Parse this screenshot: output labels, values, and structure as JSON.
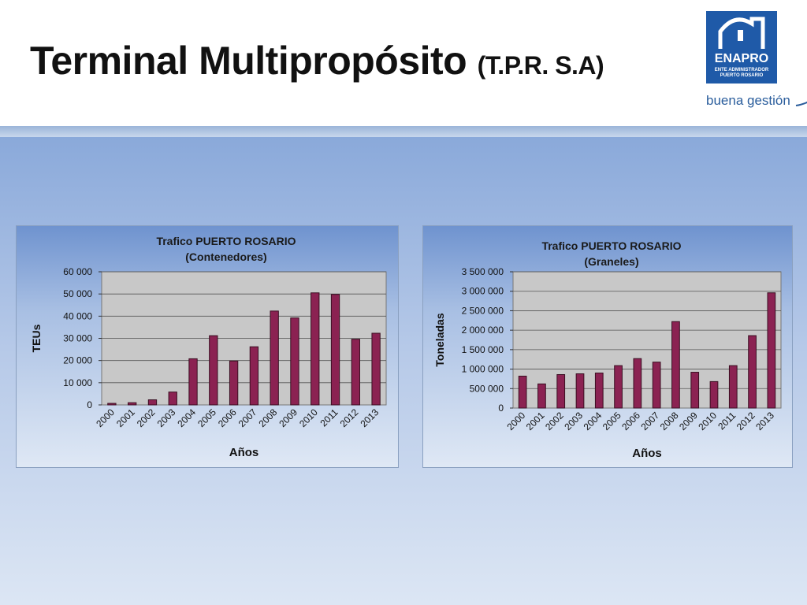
{
  "slide": {
    "title": "Terminal Multipropósito",
    "subtitle": "(T.P.R. S.A)"
  },
  "logo": {
    "name": "ENAPRO",
    "line1": "ENTE ADMINISTRADOR",
    "line2": "PUERTO ROSARIO",
    "tagline": "buena gestión",
    "color": "#1f5aa8"
  },
  "colors": {
    "bar": "#8b2252",
    "plot_bg": "#c8c8c8"
  },
  "chart_data": [
    {
      "type": "bar",
      "title": "Trafico PUERTO ROSARIO",
      "subtitle": "(Contenedores)",
      "xlabel": "Años",
      "ylabel": "TEUs",
      "categories": [
        "2000",
        "2001",
        "2002",
        "2003",
        "2004",
        "2005",
        "2006",
        "2007",
        "2008",
        "2009",
        "2010",
        "2011",
        "2012",
        "2013"
      ],
      "values": [
        700,
        1000,
        2300,
        5800,
        20800,
        31200,
        19800,
        26200,
        42300,
        39200,
        50500,
        49800,
        29600,
        32300
      ],
      "ylim": [
        0,
        60000
      ],
      "yticks": [
        0,
        10000,
        20000,
        30000,
        40000,
        50000,
        60000
      ],
      "ytick_labels": [
        "0",
        "10 000",
        "20 000",
        "30 000",
        "40 000",
        "50 000",
        "60 000"
      ],
      "grid": true
    },
    {
      "type": "bar",
      "title": "Trafico PUERTO ROSARIO",
      "subtitle": "(Graneles)",
      "xlabel": "Años",
      "ylabel": "Toneladas",
      "categories": [
        "2000",
        "2001",
        "2002",
        "2003",
        "2004",
        "2005",
        "2006",
        "2007",
        "2008",
        "2009",
        "2010",
        "2011",
        "2012",
        "2013"
      ],
      "values": [
        820000,
        620000,
        860000,
        880000,
        900000,
        1090000,
        1270000,
        1180000,
        2220000,
        920000,
        680000,
        1090000,
        1860000,
        2960000
      ],
      "ylim": [
        0,
        3500000
      ],
      "yticks": [
        0,
        500000,
        1000000,
        1500000,
        2000000,
        2500000,
        3000000,
        3500000
      ],
      "ytick_labels": [
        "0",
        "500 000",
        "1 000 000",
        "1 500 000",
        "2 000 000",
        "2 500 000",
        "3 000 000",
        "3 500 000"
      ],
      "grid": true
    }
  ]
}
